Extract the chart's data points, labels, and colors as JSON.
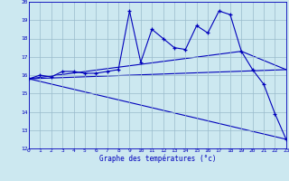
{
  "xlabel": "Graphe des températures (°c)",
  "ylim": [
    12,
    20
  ],
  "xlim": [
    0,
    23
  ],
  "yticks": [
    12,
    13,
    14,
    15,
    16,
    17,
    18,
    19,
    20
  ],
  "xticks": [
    0,
    1,
    2,
    3,
    4,
    5,
    6,
    7,
    8,
    9,
    10,
    11,
    12,
    13,
    14,
    15,
    16,
    17,
    18,
    19,
    20,
    21,
    22,
    23
  ],
  "bg_color": "#cce8f0",
  "line_color": "#0000bb",
  "grid_color": "#99bbcc",
  "series1": {
    "x": [
      0,
      1,
      2,
      3,
      4,
      5,
      6,
      7,
      8,
      9,
      10,
      11,
      12,
      13,
      14,
      15,
      16,
      17,
      18,
      19,
      20,
      21,
      22,
      23
    ],
    "y": [
      15.8,
      16.0,
      15.9,
      16.2,
      16.2,
      16.1,
      16.1,
      16.2,
      16.3,
      19.5,
      16.7,
      18.5,
      18.0,
      17.5,
      17.4,
      18.7,
      18.3,
      19.5,
      19.3,
      17.3,
      16.3,
      15.5,
      13.9,
      12.5
    ]
  },
  "series2": {
    "x": [
      0,
      23
    ],
    "y": [
      15.8,
      12.5
    ]
  },
  "series3": {
    "x": [
      0,
      23
    ],
    "y": [
      15.8,
      16.3
    ]
  },
  "series4": {
    "x": [
      0,
      19,
      23
    ],
    "y": [
      15.8,
      17.3,
      16.3
    ]
  },
  "fig_width": 3.2,
  "fig_height": 2.0,
  "dpi": 100
}
